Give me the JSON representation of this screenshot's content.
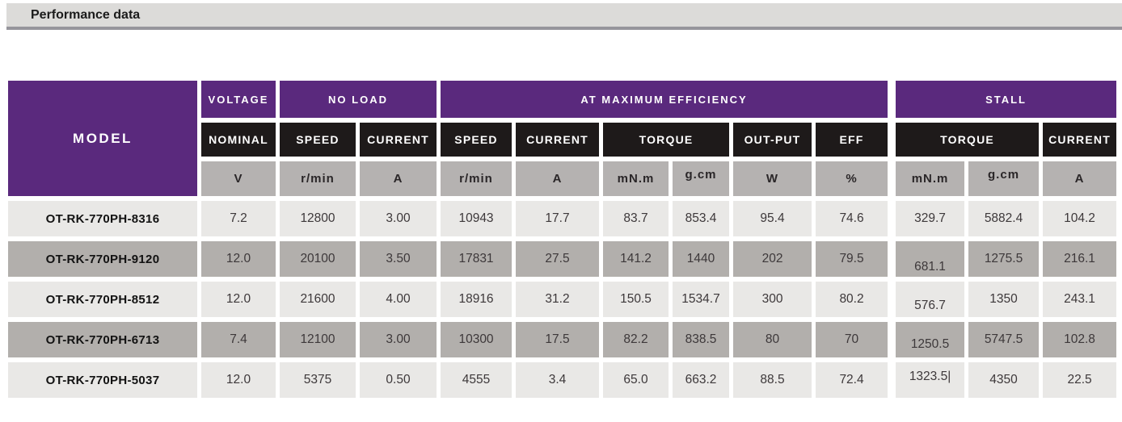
{
  "header": {
    "title": "Performance data"
  },
  "table": {
    "model_header": "MODEL",
    "groups": [
      {
        "label": "VOLTAGE"
      },
      {
        "label": "NO LOAD"
      },
      {
        "label": "AT MAXIMUM EFFICIENCY"
      },
      {
        "label": "STALL"
      }
    ],
    "subheaders": [
      "NOMINAL",
      "SPEED",
      "CURRENT",
      "SPEED",
      "CURRENT",
      "TORQUE",
      "OUT-PUT",
      "EFF",
      "TORQUE",
      "CURRENT"
    ],
    "units": [
      "V",
      "r/min",
      "A",
      "r/min",
      "A",
      "mN.m",
      "g.cm",
      "W",
      "%",
      "mN.m",
      "g.cm",
      "A"
    ],
    "rows": [
      {
        "model": "OT-RK-770PH-8316",
        "values": [
          "7.2",
          "12800",
          "3.00",
          "10943",
          "17.7",
          "83.7",
          "853.4",
          "95.4",
          "74.6",
          "329.7",
          "5882.4",
          "104.2"
        ]
      },
      {
        "model": "OT-RK-770PH-9120",
        "values": [
          "12.0",
          "20100",
          "3.50",
          "17831",
          "27.5",
          "141.2",
          "1440",
          "202",
          "79.5",
          "681.1",
          "1275.5",
          "216.1"
        ]
      },
      {
        "model": "OT-RK-770PH-8512",
        "values": [
          "12.0",
          "21600",
          "4.00",
          "18916",
          "31.2",
          "150.5",
          "1534.7",
          "300",
          "80.2",
          "576.7",
          "1350",
          "243.1"
        ]
      },
      {
        "model": "OT-RK-770PH-6713",
        "values": [
          "7.4",
          "12100",
          "3.00",
          "10300",
          "17.5",
          "82.2",
          "838.5",
          "80",
          "70",
          "1250.5",
          "5747.5",
          "102.8"
        ]
      },
      {
        "model": "OT-RK-770PH-5037",
        "values": [
          "12.0",
          "5375",
          "0.50",
          "4555",
          "3.4",
          "65.0",
          "663.2",
          "88.5",
          "72.4",
          "1323.5|",
          "4350",
          "22.5"
        ]
      }
    ],
    "colors": {
      "group_purple": "#5a297d",
      "subheader_black": "#1e1a1a",
      "unit_gray": "#b5b2b1",
      "row_light": "#e9e8e6",
      "row_dark": "#b2afac",
      "titlebar_bg": "#dcdbd9",
      "titlebar_border": "#96959c"
    }
  }
}
